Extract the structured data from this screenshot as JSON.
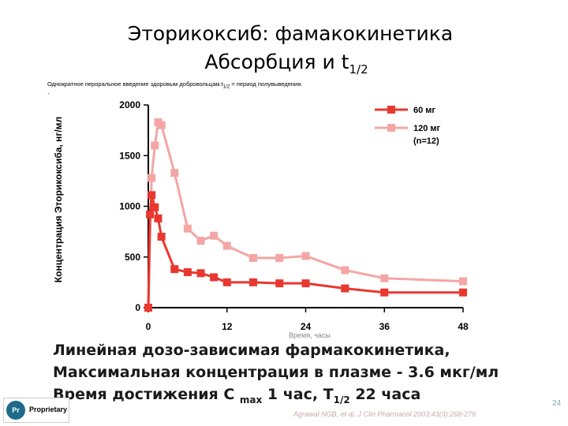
{
  "slide": {
    "title_line1": "Эторикоксиб: фамакокинетика",
    "title_line2_main": "Абсорбция и t",
    "title_line2_sub": "1/2",
    "note": "Однократное пероральное введение  здоровым добровольцам.t",
    "note_sub": "1/2",
    "note_end": " = период полувыведения.",
    "note_dot": ".",
    "summary_line1": "Линейная дозо-зависимая фармакокинетика,",
    "summary_line2": "Максимальная концентрация в плазме  - 3.6 мкг/мл",
    "summary_line3_a": "Время достижения С ",
    "summary_line3_sub": "max",
    "summary_line3_b": " 1 час,   Т",
    "summary_line3_sub2": "1/2",
    "summary_line3_c": " 22 часа",
    "citation": "Agrawal NGB, et al. J Clin Pharmacol 2003;43(3):268-276",
    "page_number": "24",
    "logo_mark": "Pr",
    "logo_text": "Proprietary"
  },
  "chart_data": {
    "type": "line",
    "xlabel": "Время, часы",
    "ylabel": "Концентрация Эторикоксиба, нг/мл",
    "xlim": [
      0,
      48
    ],
    "ylim": [
      0,
      2000
    ],
    "x_ticks": [
      "0",
      "12",
      "24",
      "36",
      "48"
    ],
    "y_ticks": [
      "0",
      "500",
      "1000",
      "1500",
      "2000"
    ],
    "legend_position": "top-right",
    "series": [
      {
        "name": "60 мг",
        "color": "#e8382f",
        "x": [
          0,
          0.25,
          0.5,
          1,
          1.5,
          2,
          4,
          6,
          8,
          10,
          12,
          16,
          20,
          24,
          30,
          36,
          48
        ],
        "y": [
          0,
          920,
          1110,
          990,
          880,
          700,
          380,
          350,
          340,
          300,
          250,
          250,
          240,
          240,
          190,
          150,
          150
        ]
      },
      {
        "name": "120 мг",
        "sublabel": "(n=12)",
        "color": "#f4a6a4",
        "x": [
          0,
          0.5,
          1,
          1.5,
          2,
          4,
          6,
          8,
          10,
          12,
          16,
          20,
          24,
          30,
          36,
          48
        ],
        "y": [
          0,
          1280,
          1600,
          1830,
          1800,
          1330,
          780,
          660,
          710,
          610,
          490,
          490,
          510,
          370,
          290,
          260
        ]
      }
    ]
  }
}
